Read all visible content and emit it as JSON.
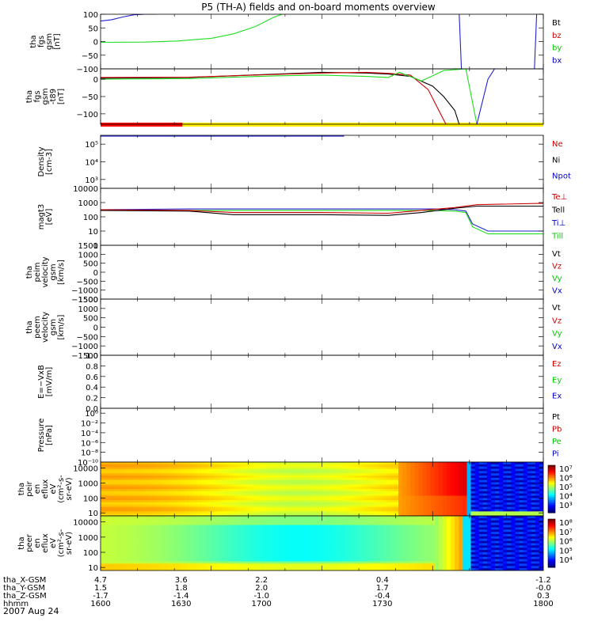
{
  "title": "P5 (TH-A) fields and on-board moments overview",
  "chart_data": {
    "type": "line",
    "x_range": [
      1600,
      1800
    ],
    "panels": [
      {
        "id": "fgs",
        "ylabel": [
          "tha",
          "fgs",
          "gsm",
          "[nT]"
        ],
        "ylim": [
          -100,
          100
        ],
        "scale": "linear",
        "ticks": [
          "100",
          "50",
          "0",
          "−50",
          "−100"
        ],
        "tick_vals": [
          100,
          50,
          0,
          -50,
          -100
        ],
        "legend": [
          {
            "label": "Bt",
            "color": "#000000"
          },
          {
            "label": "bz",
            "color": "#cc0000"
          },
          {
            "label": "by",
            "color": "#00cc00"
          },
          {
            "label": "bx",
            "color": "#0000cc"
          }
        ],
        "series": [
          {
            "name": "by",
            "color": "#22dd22",
            "x": [
              1600,
              1620,
              1635,
              1650,
              1660,
              1670,
              1678,
              1682
            ],
            "y": [
              -3,
              -2,
              2,
              12,
              28,
              55,
              88,
              100
            ]
          },
          {
            "name": "bx",
            "color": "#2222cc",
            "x": [
              1600,
              1605,
              1610,
              1615,
              1620,
              1625
            ],
            "y": [
              75,
              80,
              90,
              98,
              100,
              100
            ]
          },
          {
            "name": "bx2",
            "color": "#2222cc",
            "x": [
              1762,
              1762.5,
              1763
            ],
            "y": [
              100,
              0,
              -100
            ]
          },
          {
            "name": "bx3",
            "color": "#2222cc",
            "x": [
              1796,
              1797
            ],
            "y": [
              -100,
              100
            ]
          }
        ]
      },
      {
        "id": "fgs_t89",
        "ylabel": [
          "tha",
          "fgs",
          "gsm",
          "-t89",
          "[nT]"
        ],
        "ylim": [
          -130,
          30
        ],
        "scale": "linear",
        "ticks": [
          "0",
          "−50",
          "−100"
        ],
        "tick_vals": [
          0,
          -50,
          -100
        ],
        "legend": [],
        "series": [
          {
            "name": "black",
            "color": "#000000",
            "x": [
              1600,
              1640,
              1680,
              1700,
              1720,
              1730,
              1740,
              1750,
              1755,
              1760,
              1762
            ],
            "y": [
              3,
              5,
              15,
              20,
              18,
              15,
              8,
              -20,
              -50,
              -90,
              -130
            ]
          },
          {
            "name": "red",
            "color": "#cc0000",
            "x": [
              1600,
              1640,
              1680,
              1700,
              1720,
              1730,
              1740,
              1748,
              1752,
              1756
            ],
            "y": [
              5,
              6,
              14,
              18,
              20,
              17,
              12,
              -30,
              -80,
              -130
            ]
          },
          {
            "name": "green",
            "color": "#22dd22",
            "x": [
              1600,
              1640,
              1680,
              1700,
              1720,
              1730,
              1735,
              1745,
              1750,
              1755,
              1765,
              1770
            ],
            "y": [
              0,
              2,
              10,
              12,
              8,
              5,
              20,
              -5,
              10,
              25,
              30,
              -130
            ]
          },
          {
            "name": "blue",
            "color": "#2222cc",
            "x": [
              1770,
              1775,
              1778
            ],
            "y": [
              -130,
              0,
              30
            ]
          }
        ],
        "mode_bar": {
          "red_until": 1637,
          "colors": [
            "#ff0000",
            "#ffee00"
          ]
        }
      },
      {
        "id": "density",
        "ylabel": [
          "Density",
          "[cm-3]"
        ],
        "scale": "log",
        "ticks": [
          "10³",
          "10⁴",
          "10⁵"
        ],
        "tick_vals": [
          1,
          2,
          3
        ],
        "ylim": [
          0.5,
          3.5
        ],
        "legend": [
          {
            "label": "Ne",
            "color": "#cc0000"
          },
          {
            "label": "Ni",
            "color": "#000000"
          },
          {
            "label": "Npot",
            "color": "#0000cc"
          }
        ],
        "series": [
          {
            "name": "Npot",
            "color": "#2222cc",
            "x": [
              1600,
              1710
            ],
            "y": [
              3.45,
              3.45
            ]
          }
        ]
      },
      {
        "id": "temp",
        "ylabel": [
          "magt3",
          "[eV]"
        ],
        "scale": "log",
        "ticks": [
          "10000",
          "1000",
          "100",
          "10",
          "1"
        ],
        "tick_vals": [
          4,
          3,
          2,
          1,
          0
        ],
        "ylim": [
          0,
          4
        ],
        "legend": [
          {
            "label": "Te⊥",
            "color": "#cc0000"
          },
          {
            "label": "Tell",
            "color": "#000000"
          },
          {
            "label": "Ti⊥",
            "color": "#0000cc"
          },
          {
            "label": "Till",
            "color": "#00cc00"
          }
        ],
        "series": [
          {
            "name": "Ti",
            "color": "#2222cc",
            "x": [
              1600,
              1640,
              1700,
              1750,
              1760,
              1765,
              1768,
              1775,
              1800
            ],
            "y": [
              2.5,
              2.55,
              2.55,
              2.55,
              2.5,
              2.4,
              1.5,
              1.0,
              1.0
            ]
          },
          {
            "name": "Till",
            "color": "#22dd22",
            "x": [
              1600,
              1640,
              1700,
              1750,
              1760,
              1765,
              1768,
              1775,
              1800
            ],
            "y": [
              2.45,
              2.45,
              2.45,
              2.45,
              2.4,
              2.3,
              1.3,
              0.8,
              0.8
            ]
          },
          {
            "name": "Tell",
            "color": "#000000",
            "x": [
              1600,
              1640,
              1660,
              1700,
              1730,
              1745,
              1760,
              1770,
              1800
            ],
            "y": [
              2.45,
              2.4,
              2.15,
              2.15,
              2.1,
              2.3,
              2.6,
              2.75,
              2.75
            ]
          },
          {
            "name": "Teperp",
            "color": "#cc0000",
            "x": [
              1600,
              1640,
              1660,
              1700,
              1730,
              1745,
              1760,
              1770,
              1800
            ],
            "y": [
              2.5,
              2.45,
              2.3,
              2.3,
              2.25,
              2.45,
              2.65,
              2.85,
              2.95
            ]
          }
        ]
      },
      {
        "id": "peim",
        "ylabel": [
          "tha",
          "peim",
          "velocity",
          "gsm",
          "[km/s]"
        ],
        "ylim": [
          -1500,
          1500
        ],
        "scale": "linear",
        "ticks": [
          "1500",
          "1000",
          "500",
          "0",
          "−500",
          "−1000",
          "−1500"
        ],
        "tick_vals": [
          1500,
          1000,
          500,
          0,
          -500,
          -1000,
          -1500
        ],
        "legend": [
          {
            "label": "Vt",
            "color": "#000000"
          },
          {
            "label": "Vz",
            "color": "#cc0000"
          },
          {
            "label": "Vy",
            "color": "#00cc00"
          },
          {
            "label": "Vx",
            "color": "#0000cc"
          }
        ],
        "series": []
      },
      {
        "id": "peem",
        "ylabel": [
          "tha",
          "peem",
          "velocity",
          "gsm",
          "[km/s]"
        ],
        "ylim": [
          -1500,
          1500
        ],
        "scale": "linear",
        "ticks": [
          "1500",
          "1000",
          "500",
          "0",
          "−500",
          "−1000",
          "−1500"
        ],
        "tick_vals": [
          1500,
          1000,
          500,
          0,
          -500,
          -1000,
          -1500
        ],
        "legend": [
          {
            "label": "Vt",
            "color": "#000000"
          },
          {
            "label": "Vz",
            "color": "#cc0000"
          },
          {
            "label": "Vy",
            "color": "#00cc00"
          },
          {
            "label": "Vx",
            "color": "#0000cc"
          }
        ],
        "series": []
      },
      {
        "id": "efield",
        "ylabel": [
          "E=−VxB",
          "[mV/m]"
        ],
        "ylim": [
          0,
          1
        ],
        "scale": "linear",
        "ticks": [
          "1.0",
          "0.8",
          "0.6",
          "0.4",
          "0.2",
          "0.0"
        ],
        "tick_vals": [
          1,
          0.8,
          0.6,
          0.4,
          0.2,
          0
        ],
        "legend": [
          {
            "label": "Ez",
            "color": "#cc0000"
          },
          {
            "label": "Ey",
            "color": "#00cc00"
          },
          {
            "label": "Ex",
            "color": "#0000cc"
          }
        ],
        "series": []
      },
      {
        "id": "pressure",
        "ylabel": [
          "Pressure",
          "[nPa]"
        ],
        "scale": "log",
        "ylim": [
          -10,
          1
        ],
        "ticks": [
          "10⁰",
          "10⁻²",
          "10⁻⁴",
          "10⁻⁶",
          "10⁻⁸",
          "10⁻¹⁰"
        ],
        "tick_vals": [
          0,
          -2,
          -4,
          -6,
          -8,
          -10
        ],
        "legend": [
          {
            "label": "Pt",
            "color": "#000000"
          },
          {
            "label": "Pb",
            "color": "#cc0000"
          },
          {
            "label": "Pe",
            "color": "#00cc00"
          },
          {
            "label": "Pi",
            "color": "#0000cc"
          }
        ],
        "series": []
      },
      {
        "id": "peir",
        "ylabel": [
          "tha",
          "peir",
          "en",
          "eflux",
          "eV",
          "(cm²-s-",
          "sr-eV)"
        ],
        "scale": "log",
        "ylim": [
          0.8,
          4.4
        ],
        "ticks": [
          "10000",
          "1000",
          "100",
          "10"
        ],
        "tick_vals": [
          4,
          3,
          2,
          1
        ],
        "spectrogram": true,
        "colorbar_ticks": [
          "10⁷",
          "10⁶",
          "10⁵",
          "10⁴",
          "10³"
        ]
      },
      {
        "id": "peer",
        "ylabel": [
          "tha",
          "peer",
          "en",
          "eflux",
          "eV",
          "(cm²-s-",
          "sr-eV)"
        ],
        "scale": "log",
        "ylim": [
          0.8,
          4.4
        ],
        "ticks": [
          "10000",
          "1000",
          "100",
          "10"
        ],
        "tick_vals": [
          4,
          3,
          2,
          1
        ],
        "spectrogram": true,
        "colorbar_ticks": [
          "10⁸",
          "10⁷",
          "10⁶",
          "10⁵",
          "10⁴"
        ]
      }
    ],
    "orbit_rows": [
      {
        "label": "tha_X-GSM",
        "values": [
          "4.7",
          "3.6",
          "2.2",
          "0.4",
          "-1.2"
        ]
      },
      {
        "label": "tha_Y-GSM",
        "values": [
          "1.5",
          "1.8",
          "2.0",
          "1.7",
          "-0.0"
        ]
      },
      {
        "label": "tha_Z-GSM",
        "values": [
          "-1.7",
          "-1.4",
          "-1.0",
          "-0.4",
          "0.3"
        ]
      },
      {
        "label": "hhmm",
        "values": [
          "1600",
          "1630",
          "1700",
          "1730",
          "1800"
        ]
      }
    ],
    "date": "2007 Aug 24"
  }
}
